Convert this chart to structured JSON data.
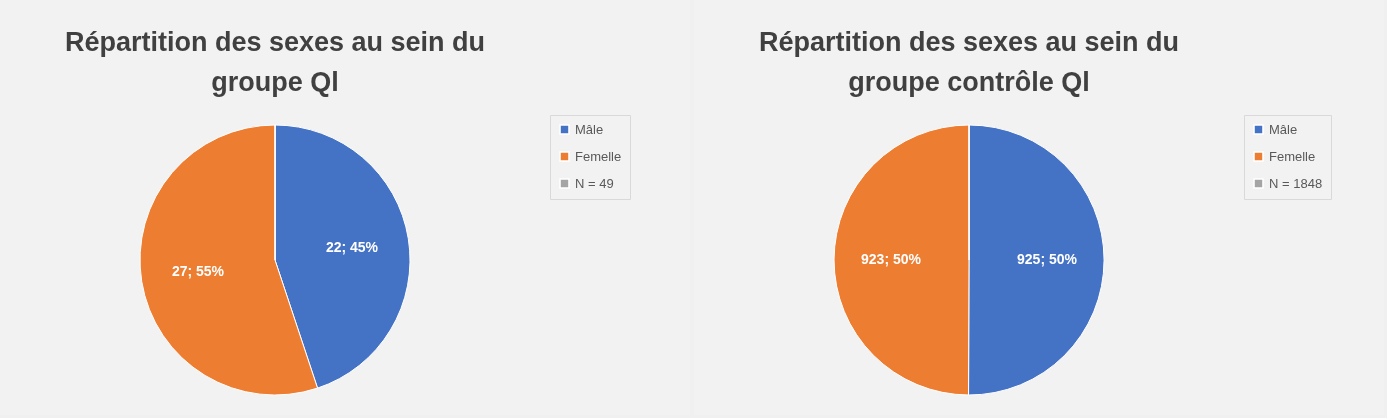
{
  "chart_data": [
    {
      "type": "pie",
      "title": "Répartition des sexes au sein du groupe Ql",
      "categories": [
        "Mâle",
        "Femelle",
        "N = 49"
      ],
      "values": [
        22,
        27,
        0
      ],
      "colors": [
        "#4472c4",
        "#ed7d31",
        "#a5a5a5"
      ],
      "value_labels": [
        "22; 45%",
        "27; 55%",
        null
      ],
      "legend": "right"
    },
    {
      "type": "pie",
      "title": "Répartition des sexes au sein du groupe contrôle Ql",
      "categories": [
        "Mâle",
        "Femelle",
        "N = 1848"
      ],
      "values": [
        925,
        923,
        0
      ],
      "colors": [
        "#4472c4",
        "#ed7d31",
        "#a5a5a5"
      ],
      "value_labels": [
        "925; 50%",
        "923; 50%",
        null
      ],
      "legend": "right"
    }
  ]
}
